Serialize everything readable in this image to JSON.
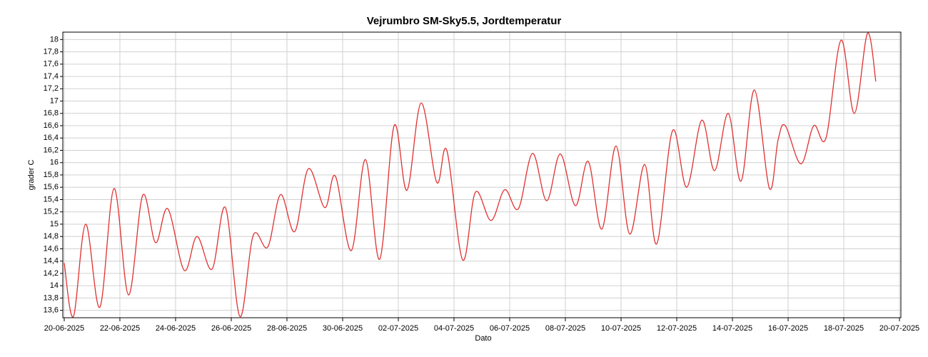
{
  "chart_data": {
    "type": "line",
    "title": "Vejrumbro SM-Sky5.5, Jordtemperatur",
    "x_label": "Dato",
    "y_label": "grader C",
    "x": [
      0,
      0.33,
      0.77,
      1.28,
      1.79,
      2.31,
      2.82,
      3.28,
      3.72,
      4.31,
      4.77,
      5.31,
      5.79,
      6.31,
      6.79,
      7.31,
      7.77,
      8.28,
      8.77,
      9.36,
      9.74,
      10.31,
      10.82,
      11.33,
      11.85,
      12.31,
      12.82,
      13.38,
      13.74,
      14.31,
      14.77,
      15.33,
      15.82,
      16.31,
      16.82,
      17.33,
      17.82,
      18.36,
      18.82,
      19.31,
      19.82,
      20.31,
      20.85,
      21.28,
      21.85,
      22.36,
      22.9,
      23.36,
      23.85,
      24.31,
      24.79,
      25.33,
      25.64,
      25.9,
      26.46,
      26.92,
      27.36,
      27.9,
      28.38,
      28.85,
      29.15
    ],
    "series": [
      {
        "name": "Jordtemperatur",
        "color": "#e03030",
        "values": [
          14.37,
          13.5,
          15.0,
          13.65,
          15.58,
          13.85,
          15.47,
          14.7,
          15.25,
          14.25,
          14.8,
          14.27,
          15.27,
          13.5,
          14.82,
          14.63,
          15.48,
          14.88,
          15.9,
          15.27,
          15.78,
          14.57,
          16.05,
          14.43,
          16.6,
          15.55,
          16.97,
          15.68,
          16.2,
          14.42,
          15.52,
          15.06,
          15.56,
          15.25,
          16.15,
          15.38,
          16.14,
          15.3,
          16.02,
          14.92,
          16.27,
          14.84,
          15.97,
          14.68,
          16.52,
          15.6,
          16.69,
          15.87,
          16.8,
          15.7,
          17.18,
          15.58,
          16.37,
          16.6,
          15.98,
          16.6,
          16.4,
          17.99,
          16.8,
          18.1,
          17.32
        ]
      }
    ],
    "xlim": [
      -0.05,
      30.05
    ],
    "xticks": [
      {
        "value": 0,
        "label": "20-06-2025"
      },
      {
        "value": 2,
        "label": "22-06-2025"
      },
      {
        "value": 4,
        "label": "24-06-2025"
      },
      {
        "value": 6,
        "label": "26-06-2025"
      },
      {
        "value": 8,
        "label": "28-06-2025"
      },
      {
        "value": 10,
        "label": "30-06-2025"
      },
      {
        "value": 12,
        "label": "02-07-2025"
      },
      {
        "value": 14,
        "label": "04-07-2025"
      },
      {
        "value": 16,
        "label": "06-07-2025"
      },
      {
        "value": 18,
        "label": "08-07-2025"
      },
      {
        "value": 20,
        "label": "10-07-2025"
      },
      {
        "value": 22,
        "label": "12-07-2025"
      },
      {
        "value": 24,
        "label": "14-07-2025"
      },
      {
        "value": 26,
        "label": "16-07-2025"
      },
      {
        "value": 28,
        "label": "18-07-2025"
      },
      {
        "value": 30,
        "label": "20-07-2025"
      }
    ],
    "ylim": [
      13.48,
      18.12
    ],
    "yticks": [
      {
        "value": 13.6,
        "label": "13,6"
      },
      {
        "value": 13.8,
        "label": "13,8"
      },
      14,
      {
        "value": 14.2,
        "label": "14,2"
      },
      {
        "value": 14.4,
        "label": "14,4"
      },
      {
        "value": 14.6,
        "label": "14,6"
      },
      {
        "value": 14.8,
        "label": "14,8"
      },
      15,
      {
        "value": 15.2,
        "label": "15,2"
      },
      {
        "value": 15.4,
        "label": "15,4"
      },
      {
        "value": 15.6,
        "label": "15,6"
      },
      {
        "value": 15.8,
        "label": "15,8"
      },
      16,
      {
        "value": 16.2,
        "label": "16,2"
      },
      {
        "value": 16.4,
        "label": "16,4"
      },
      {
        "value": 16.6,
        "label": "16,6"
      },
      {
        "value": 16.8,
        "label": "16,8"
      },
      17,
      {
        "value": 17.2,
        "label": "17,2"
      },
      {
        "value": 17.4,
        "label": "17,4"
      },
      {
        "value": 17.6,
        "label": "17,6"
      },
      {
        "value": 17.8,
        "label": "17,8"
      },
      18
    ],
    "grid": true
  }
}
